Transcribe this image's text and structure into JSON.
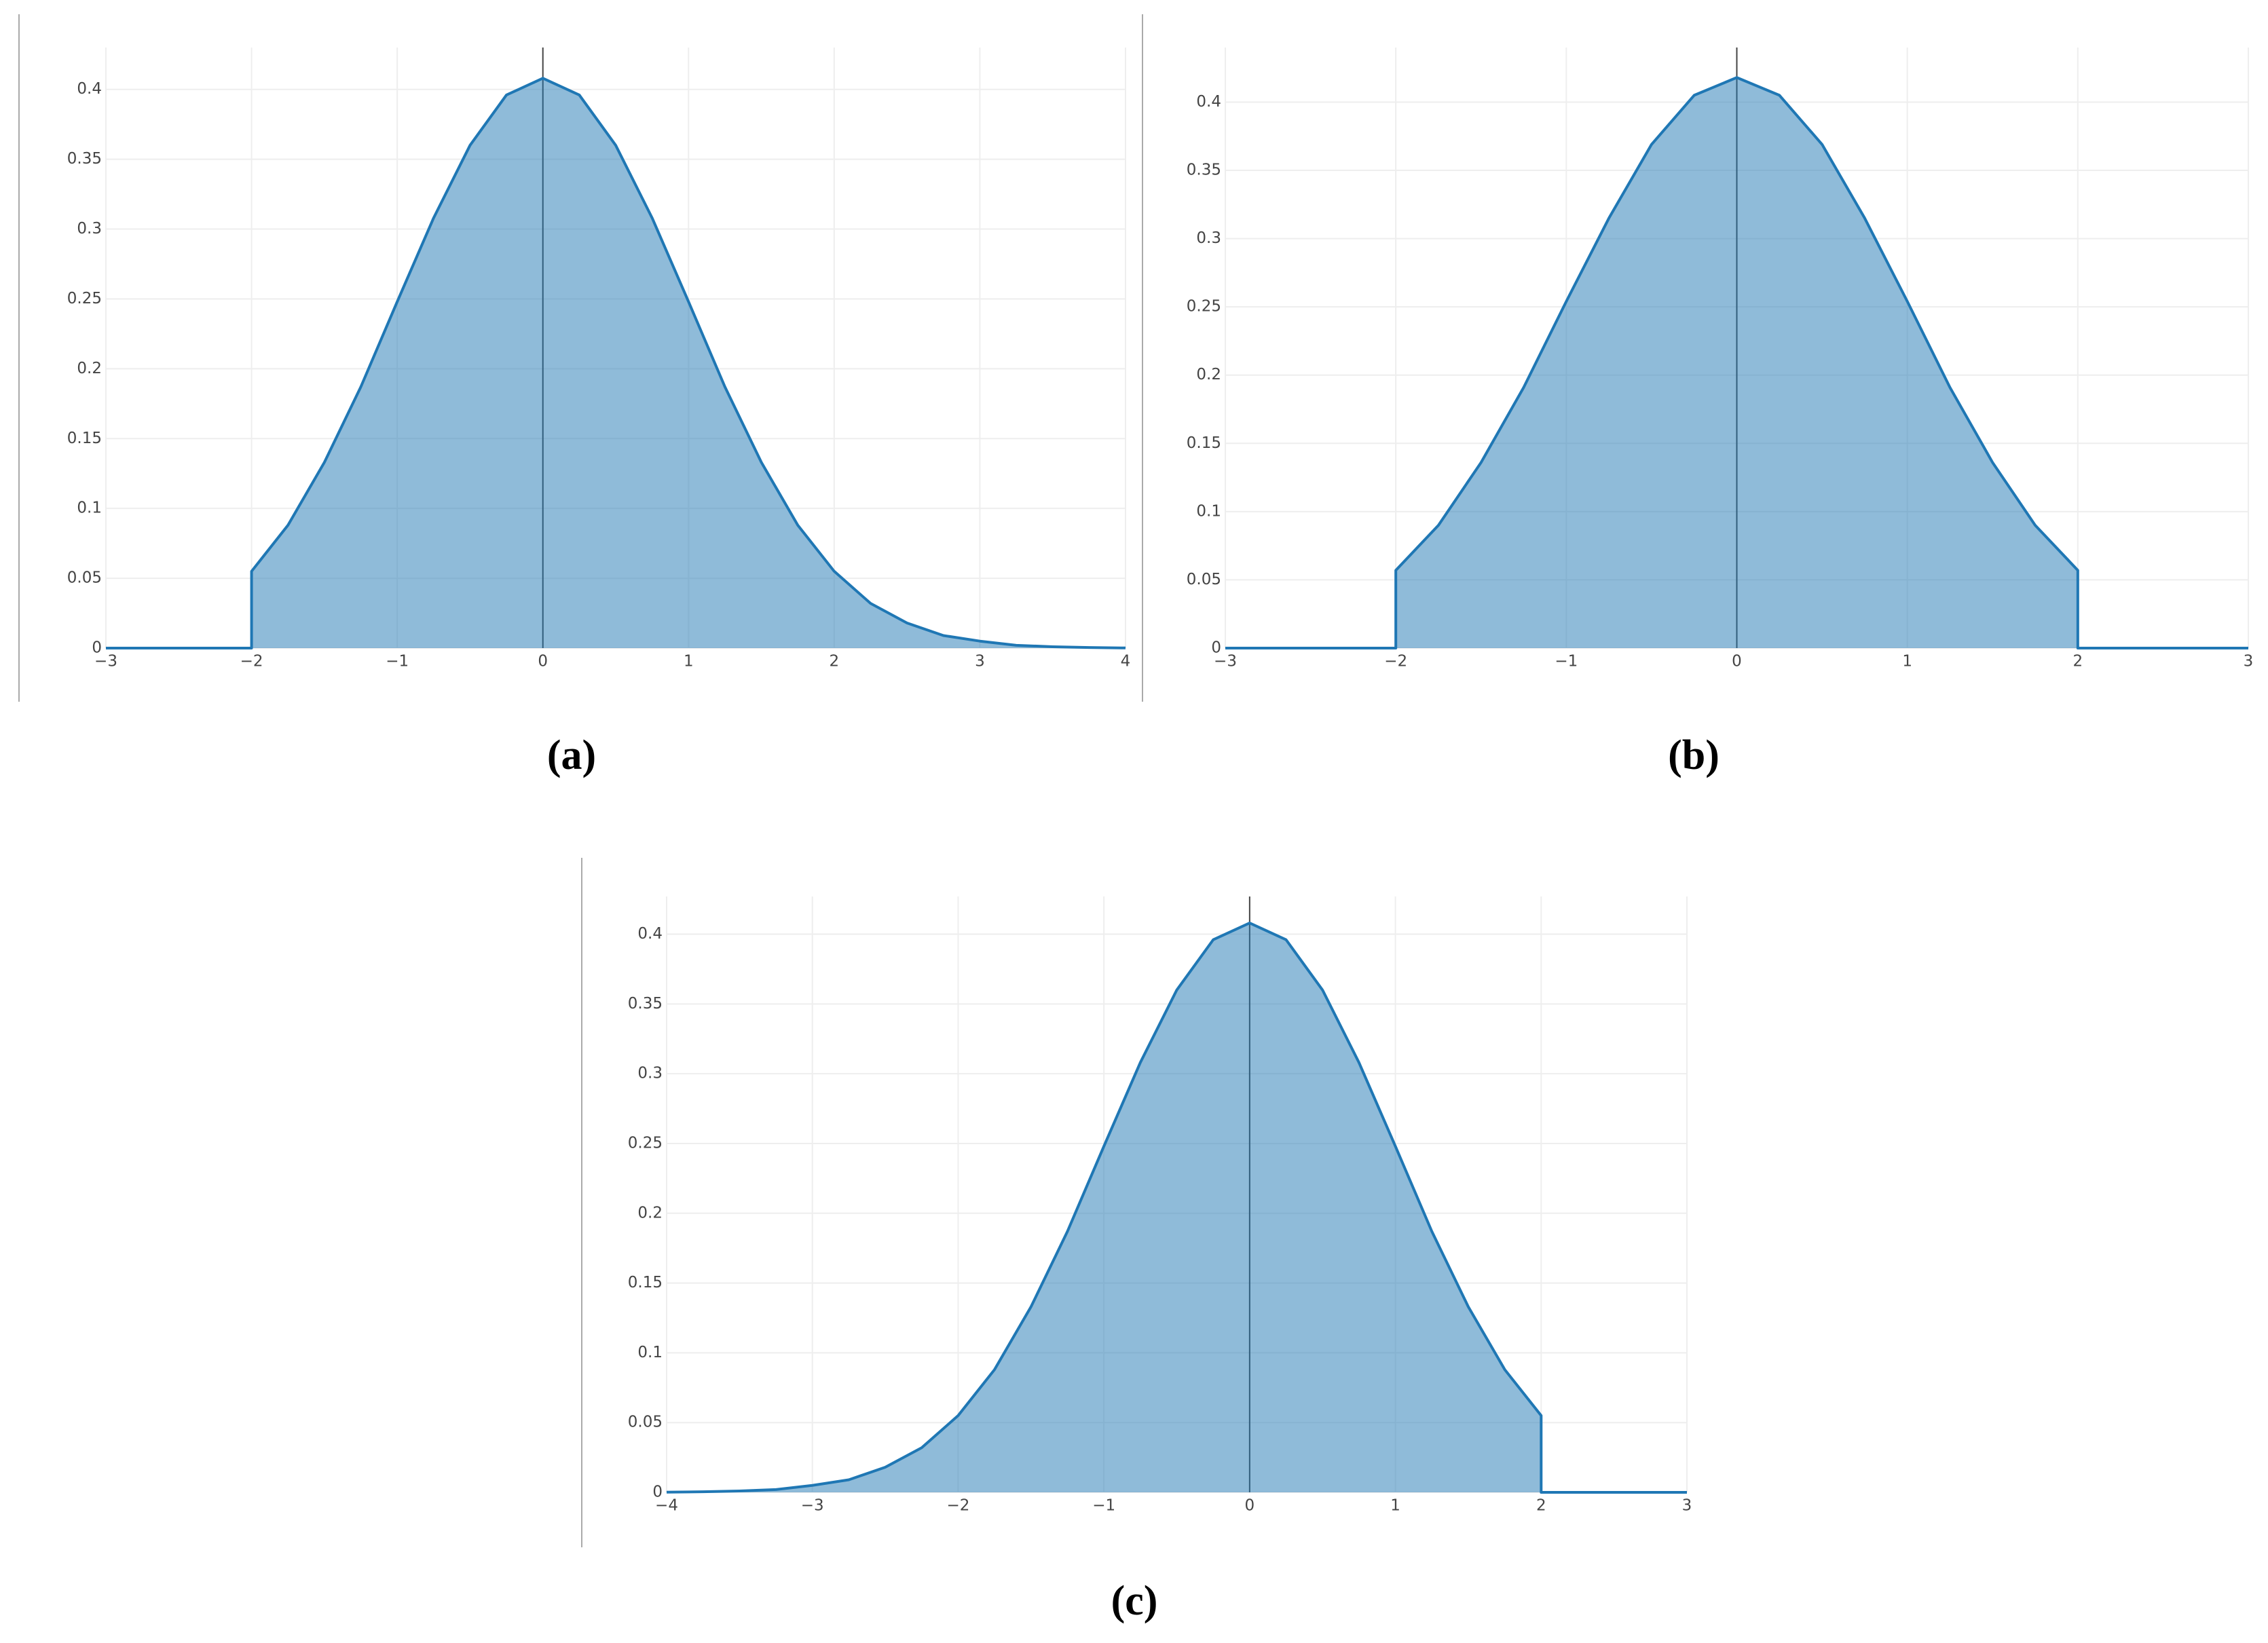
{
  "chart_data": [
    {
      "type": "area",
      "caption": "(a)",
      "color": "#1f77b4",
      "grid": true,
      "x": [
        -3,
        -2,
        -2,
        -1.75,
        -1.5,
        -1.25,
        -1,
        -0.75,
        -0.5,
        -0.25,
        0,
        0.25,
        0.5,
        0.75,
        1,
        1.25,
        1.5,
        1.75,
        2,
        2.25,
        2.5,
        2.75,
        3,
        3.25,
        3.5,
        3.75,
        4
      ],
      "series": [
        {
          "color": "#1f77b4",
          "values": [
            0,
            0,
            0.055,
            0.088,
            0.133,
            0.187,
            0.248,
            0.308,
            0.36,
            0.396,
            0.408,
            0.396,
            0.36,
            0.308,
            0.248,
            0.187,
            0.133,
            0.088,
            0.055,
            0.032,
            0.018,
            0.009,
            0.005,
            0.002,
            0.001,
            0.0004,
            0.0001
          ]
        }
      ],
      "xlim": [
        -3,
        4
      ],
      "ylim": [
        0,
        0.43
      ],
      "xticks": [
        {
          "value": -3,
          "label": "−3"
        },
        {
          "value": -2,
          "label": "−2"
        },
        {
          "value": -1,
          "label": "−1"
        },
        0,
        1,
        2,
        3,
        4
      ],
      "yticks": [
        0,
        0.05,
        0.1,
        0.15,
        0.2,
        0.25,
        0.3,
        0.35,
        0.4
      ]
    },
    {
      "type": "area",
      "caption": "(b)",
      "color": "#1f77b4",
      "grid": true,
      "x": [
        -3,
        -2,
        -2,
        -1.75,
        -1.5,
        -1.25,
        -1,
        -0.75,
        -0.5,
        -0.25,
        0,
        0.25,
        0.5,
        0.75,
        1,
        1.25,
        1.5,
        1.75,
        2,
        2,
        3
      ],
      "series": [
        {
          "color": "#1f77b4",
          "values": [
            0,
            0,
            0.057,
            0.09,
            0.136,
            0.191,
            0.254,
            0.315,
            0.369,
            0.405,
            0.418,
            0.405,
            0.369,
            0.315,
            0.254,
            0.191,
            0.136,
            0.09,
            0.057,
            0,
            0
          ]
        }
      ],
      "xlim": [
        -3,
        3
      ],
      "ylim": [
        0,
        0.44
      ],
      "xticks": [
        {
          "value": -3,
          "label": "−3"
        },
        {
          "value": -2,
          "label": "−2"
        },
        {
          "value": -1,
          "label": "−1"
        },
        0,
        1,
        2,
        3
      ],
      "yticks": [
        0,
        0.05,
        0.1,
        0.15,
        0.2,
        0.25,
        0.3,
        0.35,
        0.4
      ]
    },
    {
      "type": "area",
      "caption": "(c)",
      "color": "#1f77b4",
      "grid": true,
      "x": [
        -4,
        -3.75,
        -3.5,
        -3.25,
        -3,
        -2.75,
        -2.5,
        -2.25,
        -2,
        -1.75,
        -1.5,
        -1.25,
        -1,
        -0.75,
        -0.5,
        -0.25,
        0,
        0.25,
        0.5,
        0.75,
        1,
        1.25,
        1.5,
        1.75,
        2,
        2,
        3
      ],
      "series": [
        {
          "color": "#1f77b4",
          "values": [
            0.0001,
            0.0004,
            0.001,
            0.002,
            0.005,
            0.009,
            0.018,
            0.032,
            0.055,
            0.088,
            0.133,
            0.187,
            0.248,
            0.308,
            0.36,
            0.396,
            0.408,
            0.396,
            0.36,
            0.308,
            0.248,
            0.187,
            0.133,
            0.088,
            0.055,
            0,
            0
          ]
        }
      ],
      "xlim": [
        -4,
        3
      ],
      "ylim": [
        0,
        0.427
      ],
      "xticks": [
        {
          "value": -4,
          "label": "−4"
        },
        {
          "value": -3,
          "label": "−3"
        },
        {
          "value": -2,
          "label": "−2"
        },
        {
          "value": -1,
          "label": "−1"
        },
        0,
        1,
        2,
        3
      ],
      "yticks": [
        0,
        0.05,
        0.1,
        0.15,
        0.2,
        0.25,
        0.3,
        0.35,
        0.4
      ]
    }
  ]
}
